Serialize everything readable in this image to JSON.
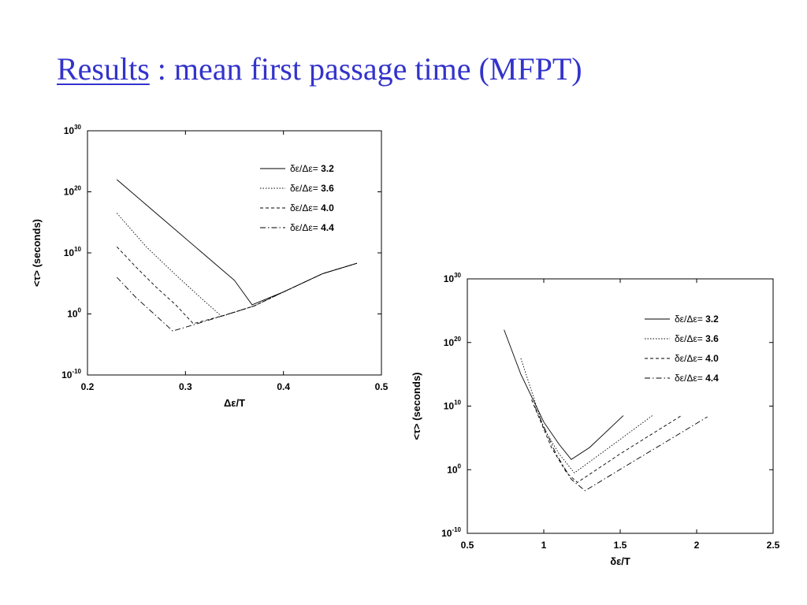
{
  "slide": {
    "title_link": "Results",
    "title_rest": " : mean first passage time (MFPT)"
  },
  "chart_data": [
    {
      "type": "line",
      "xlabel": "Δε/T",
      "ylabel": "<τ> (seconds)",
      "xlim": [
        0.2,
        0.5
      ],
      "ylim_exponent": [
        -10,
        30
      ],
      "yscale": "log",
      "xticks": [
        "0.2",
        "0.3",
        "0.4",
        "0.5"
      ],
      "yticks": [
        {
          "base": "10",
          "exp": "30",
          "value": 30
        },
        {
          "base": "10",
          "exp": "20",
          "value": 20
        },
        {
          "base": "10",
          "exp": "10",
          "value": 10
        },
        {
          "base": "10",
          "exp": "0",
          "value": 0
        },
        {
          "base": "10",
          "exp": "-10",
          "value": -10
        }
      ],
      "grid": false,
      "legend_position": "top-right",
      "series": [
        {
          "name": "δε/Δε= 3.2",
          "label_prefix": "δε/Δε= ",
          "label_value": "3.2",
          "dash": "",
          "x": [
            0.23,
            0.27,
            0.31,
            0.35,
            0.368,
            0.4,
            0.44,
            0.475
          ],
          "log10_y": [
            22,
            16.5,
            11,
            5.5,
            1.5,
            3.6,
            6.6,
            8.3
          ]
        },
        {
          "name": "δε/Δε= 3.6",
          "label_prefix": "δε/Δε= ",
          "label_value": "3.6",
          "dash": "1.5,2",
          "x": [
            0.23,
            0.26,
            0.29,
            0.32,
            0.337,
            0.37,
            0.4,
            0.44,
            0.475
          ],
          "log10_y": [
            16.5,
            11,
            6.4,
            2,
            -0.4,
            1.3,
            3.6,
            6.6,
            8.3
          ]
        },
        {
          "name": "δε/Δε= 4.0",
          "label_prefix": "δε/Δε= ",
          "label_value": "4.0",
          "dash": "4,3",
          "x": [
            0.23,
            0.25,
            0.27,
            0.29,
            0.308,
            0.34,
            0.37,
            0.4,
            0.44,
            0.475
          ],
          "log10_y": [
            11,
            7.6,
            4.4,
            1.5,
            -1.6,
            -0.2,
            1.3,
            3.6,
            6.6,
            8.3
          ]
        },
        {
          "name": "δε/Δε= 4.4",
          "label_prefix": "δε/Δε= ",
          "label_value": "4.4",
          "dash": "7,3,1.5,3",
          "x": [
            0.23,
            0.25,
            0.268,
            0.287,
            0.31,
            0.34,
            0.37,
            0.4,
            0.44,
            0.475
          ],
          "log10_y": [
            6,
            2.6,
            0,
            -2.8,
            -1.7,
            -0.2,
            1.3,
            3.6,
            6.6,
            8.3
          ]
        }
      ]
    },
    {
      "type": "line",
      "xlabel": "δε/T",
      "ylabel": "<τ> (seconds)",
      "xlim": [
        0.5,
        2.5
      ],
      "ylim_exponent": [
        -10,
        30
      ],
      "yscale": "log",
      "xticks": [
        "0.5",
        "1",
        "1.5",
        "2",
        "2.5"
      ],
      "yticks": [
        {
          "base": "10",
          "exp": "30",
          "value": 30
        },
        {
          "base": "10",
          "exp": "20",
          "value": 20
        },
        {
          "base": "10",
          "exp": "10",
          "value": 10
        },
        {
          "base": "10",
          "exp": "0",
          "value": 0
        },
        {
          "base": "10",
          "exp": "-10",
          "value": -10
        }
      ],
      "grid": false,
      "legend_position": "top-right",
      "series": [
        {
          "name": "δε/Δε= 3.2",
          "label_prefix": "δε/Δε= ",
          "label_value": "3.2",
          "dash": "",
          "x": [
            0.74,
            0.85,
            1.0,
            1.1,
            1.18,
            1.3,
            1.52
          ],
          "log10_y": [
            22,
            15,
            7.5,
            4,
            1.6,
            3.5,
            8.5
          ]
        },
        {
          "name": "δε/Δε= 3.6",
          "label_prefix": "δε/Δε= ",
          "label_value": "3.6",
          "dash": "1.5,2",
          "x": [
            0.85,
            1.0,
            1.1,
            1.2,
            1.4,
            1.71
          ],
          "log10_y": [
            17.5,
            6.5,
            2.5,
            -0.5,
            3,
            8.5
          ]
        },
        {
          "name": "δε/Δε= 4.0",
          "label_prefix": "δε/Δε= ",
          "label_value": "4.0",
          "dash": "4,3",
          "x": [
            0.92,
            1.05,
            1.15,
            1.22,
            1.5,
            1.9
          ],
          "log10_y": [
            11,
            3.5,
            -0.5,
            -2,
            2.5,
            8.5
          ]
        },
        {
          "name": "δε/Δε= 4.4",
          "label_prefix": "δε/Δε= ",
          "label_value": "4.4",
          "dash": "7,3,1.5,3",
          "x": [
            0.94,
            1.08,
            1.18,
            1.27,
            1.6,
            2.07
          ],
          "log10_y": [
            10,
            2.5,
            -1.5,
            -3.3,
            1.5,
            8.3
          ]
        }
      ]
    }
  ]
}
